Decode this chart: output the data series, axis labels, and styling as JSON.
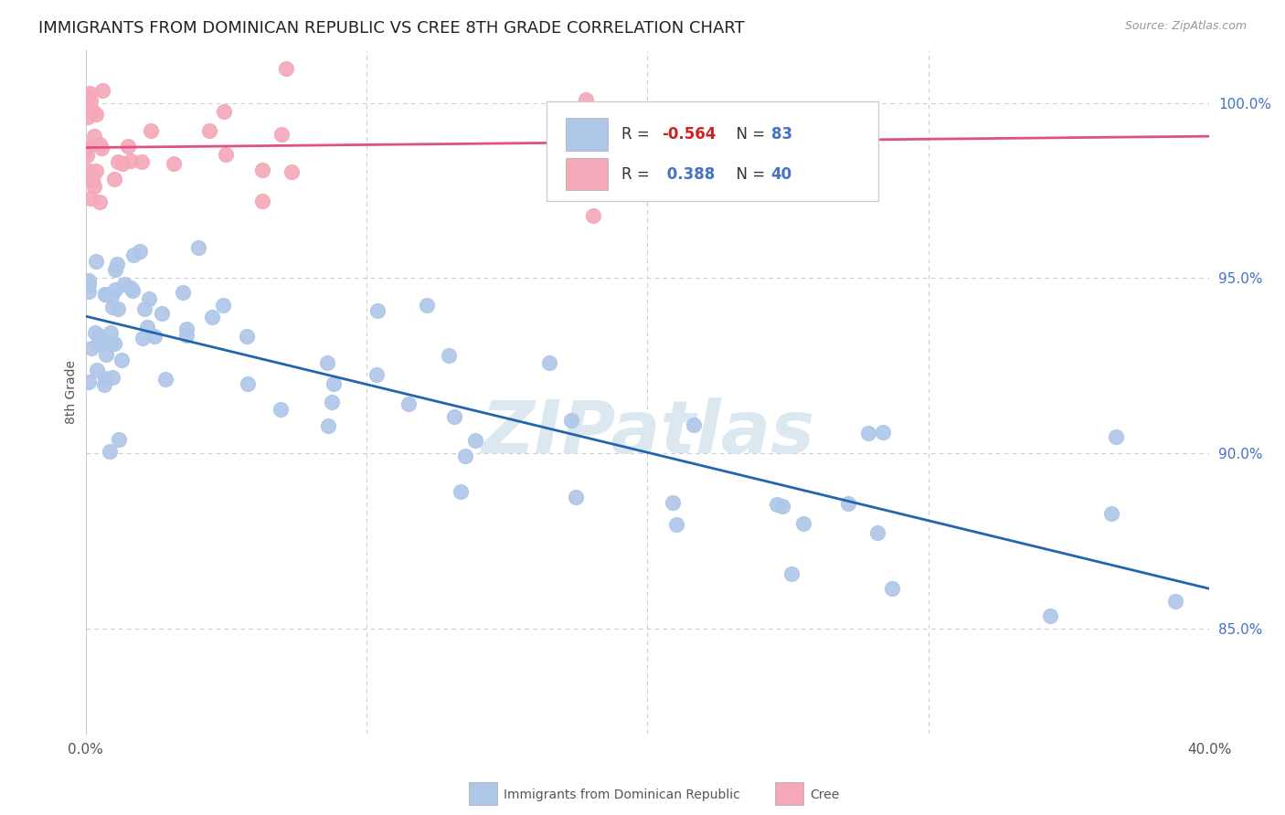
{
  "title": "IMMIGRANTS FROM DOMINICAN REPUBLIC VS CREE 8TH GRADE CORRELATION CHART",
  "source": "Source: ZipAtlas.com",
  "ylabel": "8th Grade",
  "right_yticks": [
    85.0,
    90.0,
    95.0,
    100.0
  ],
  "x_min": 0.0,
  "x_max": 40.0,
  "y_min": 82.0,
  "y_max": 101.5,
  "blue_R": -0.564,
  "blue_N": 83,
  "pink_R": 0.388,
  "pink_N": 40,
  "blue_color": "#aec6e8",
  "blue_line_color": "#2166ac",
  "pink_color": "#f4a8b8",
  "pink_line_color": "#e05080",
  "legend_blue_label": "Immigrants from Dominican Republic",
  "legend_pink_label": "Cree",
  "background_color": "#ffffff",
  "grid_color": "#cccccc",
  "watermark_text": "ZIPatlas",
  "watermark_color": "#dce8f0",
  "title_fontsize": 13,
  "axis_label_color": "#555555",
  "right_axis_color": "#4472c4"
}
